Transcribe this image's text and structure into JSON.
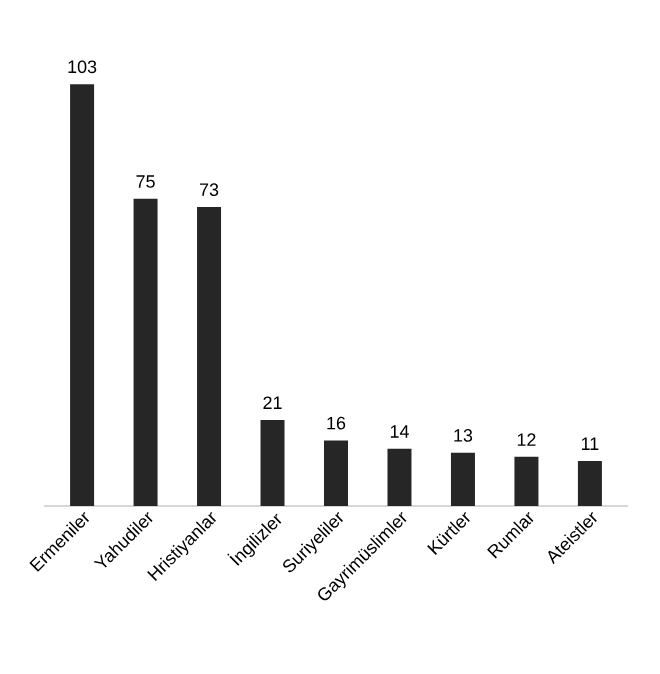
{
  "chart_data": {
    "type": "bar",
    "categories": [
      "Ermeniler",
      "Yahudiler",
      "Hristiyanlar",
      "İngilizler",
      "Suriyeliler",
      "Gayrimüslimler",
      "Kürtler",
      "Rumlar",
      "Ateistler"
    ],
    "values": [
      103,
      75,
      73,
      21,
      16,
      14,
      13,
      12,
      11
    ],
    "color": "#262626",
    "data_labels": true
  }
}
